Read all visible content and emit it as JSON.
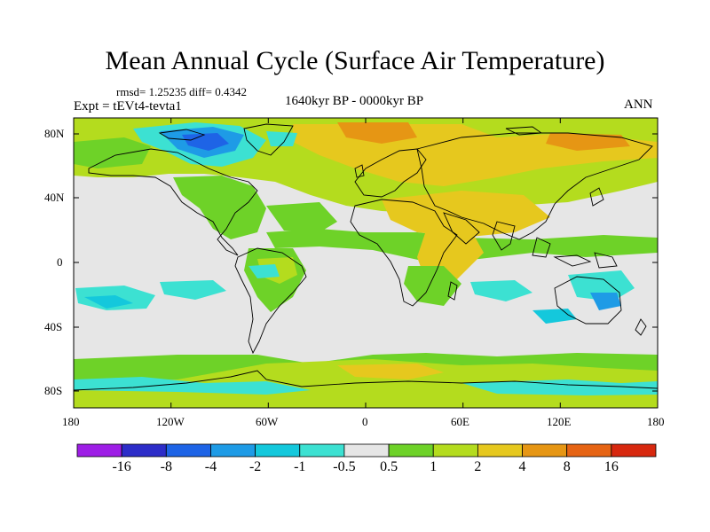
{
  "title": "Mean Annual Cycle (Surface Air Temperature)",
  "stats": "rmsd= 1.25235 diff= 0.4342",
  "experiment": "Expt = tEVt4-tevta1",
  "period": "1640kyr BP - 0000kyr BP",
  "season": "ANN",
  "lat_ticks": [
    "80N",
    "40N",
    "0",
    "40S",
    "80S"
  ],
  "lon_ticks": [
    "180",
    "120W",
    "60W",
    "0",
    "60E",
    "120E",
    "180"
  ],
  "colorbar": {
    "labels": [
      "-16",
      "-8",
      "-4",
      "-2",
      "-1",
      "-0.5",
      "0.5",
      "1",
      "2",
      "4",
      "8",
      "16"
    ],
    "colors": [
      "#9e1ee6",
      "#2d2dc8",
      "#1e64e6",
      "#1e9be6",
      "#14c8dc",
      "#3ce1d2",
      "#e6e6e6",
      "#6ed228",
      "#b4dc1e",
      "#e6c81e",
      "#e69614",
      "#e66414",
      "#d7280f"
    ]
  }
}
